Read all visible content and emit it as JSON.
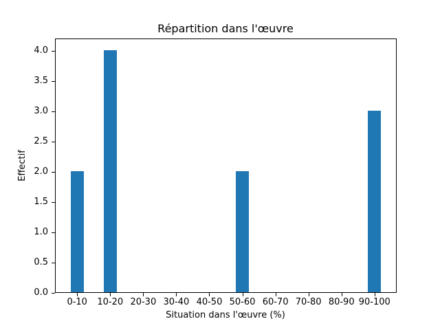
{
  "chart_data": {
    "type": "bar",
    "title": "Répartition dans l'œuvre",
    "xlabel": "Situation dans l'œuvre (%)",
    "ylabel": "Effectif",
    "categories": [
      "0-10",
      "10-20",
      "20-30",
      "30-40",
      "40-50",
      "50-60",
      "60-70",
      "70-80",
      "80-90",
      "90-100"
    ],
    "values": [
      2,
      4,
      0,
      0,
      0,
      2,
      0,
      0,
      0,
      3
    ],
    "yticks": [
      0.0,
      0.5,
      1.0,
      1.5,
      2.0,
      2.5,
      3.0,
      3.5,
      4.0
    ],
    "ylim": [
      0,
      4.2
    ],
    "xlim": [
      -0.67,
      9.67
    ],
    "bar_width_ratio": 0.4,
    "bar_color": "#1f77b4",
    "grid": false,
    "legend_position": "none"
  }
}
